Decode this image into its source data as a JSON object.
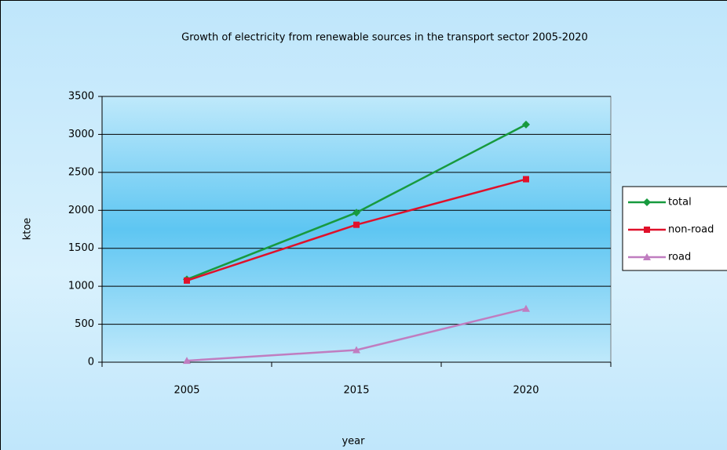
{
  "chart_data": {
    "type": "line",
    "title": "Growth of electricity from renewable sources in the transport sector 2005-2020",
    "x_label": "year",
    "y_label": "ktoe",
    "categories": [
      "2005",
      "2015",
      "2020"
    ],
    "series": [
      {
        "name": "total",
        "color": "#179a3e",
        "marker": "diamond",
        "values": [
          1090,
          1970,
          3130
        ]
      },
      {
        "name": "non-road",
        "color": "#e0102a",
        "marker": "square",
        "values": [
          1075,
          1810,
          2410
        ]
      },
      {
        "name": "road",
        "color": "#c07dc0",
        "marker": "triangle",
        "values": [
          20,
          160,
          705
        ]
      }
    ],
    "ylim": [
      0,
      3500
    ],
    "yticks": [
      0,
      500,
      1000,
      1500,
      2000,
      2500,
      3000,
      3500
    ],
    "grid": true,
    "legend": "right"
  }
}
